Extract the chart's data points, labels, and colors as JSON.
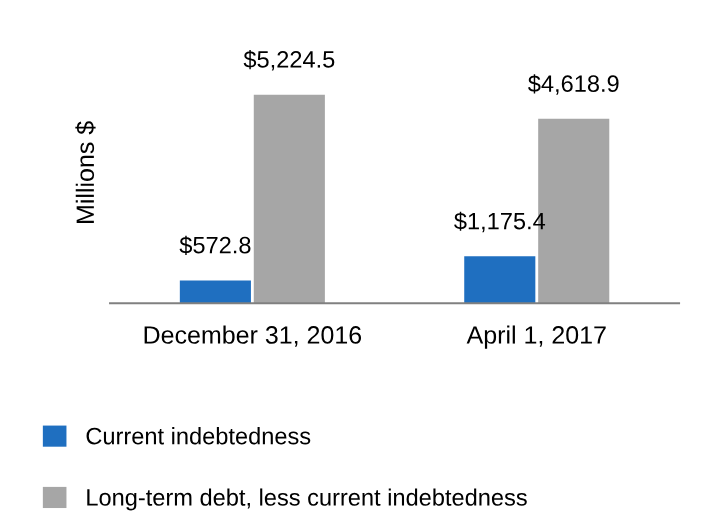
{
  "chart_data": {
    "type": "bar",
    "ylabel": "Millions $",
    "categories": [
      "December 31, 2016",
      "April 1, 2017"
    ],
    "series": [
      {
        "name": "Current indebtedness",
        "color": "#1f6fc0",
        "values": [
          572.8,
          1175.4
        ],
        "value_labels": [
          "$572.8",
          "$1,175.4"
        ]
      },
      {
        "name": "Long-term debt, less current indebtedness",
        "color": "#a6a6a6",
        "values": [
          5224.5,
          4618.9
        ],
        "value_labels": [
          "$5,224.5",
          "$4,618.9"
        ]
      }
    ],
    "tick_labels": "x",
    "legend": "bottom",
    "grid": false
  }
}
